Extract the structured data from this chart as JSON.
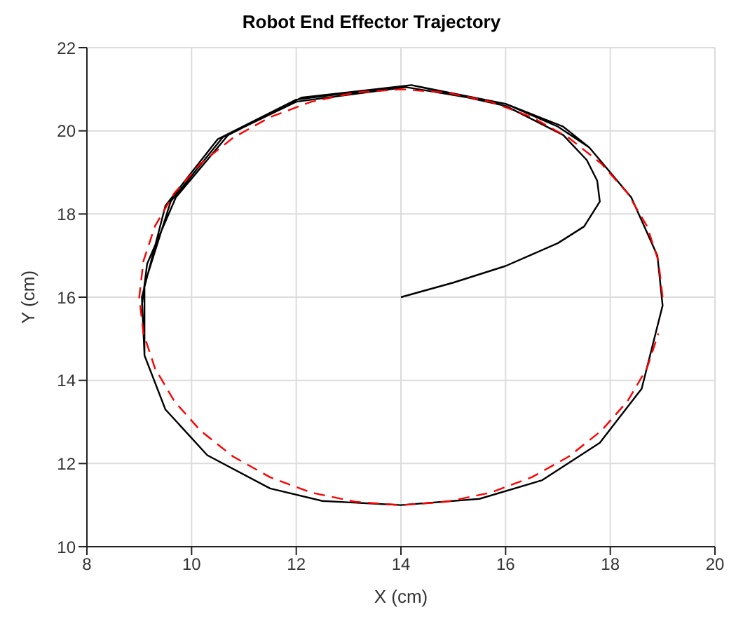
{
  "chart_data": {
    "type": "line",
    "title": "Robot End Effector Trajectory",
    "xlabel": "X (cm)",
    "ylabel": "Y (cm)",
    "xlim": [
      8,
      20
    ],
    "xticks": [
      8,
      10,
      12,
      14,
      16,
      18,
      20
    ],
    "ylim": [
      10,
      22
    ],
    "yticks": [
      10,
      12,
      14,
      16,
      18,
      20,
      22
    ],
    "grid": true,
    "marker": "none",
    "series": [
      {
        "color": "#ff0000",
        "line_style": "dashed",
        "x": [
          19,
          18.92,
          18.7,
          18.33,
          17.83,
          17.21,
          16.5,
          15.71,
          14.87,
          14,
          13.13,
          12.29,
          11.5,
          10.79,
          10.17,
          9.67,
          9.3,
          9.08,
          9,
          9.08,
          9.3,
          9.67,
          10.17,
          10.79,
          11.5,
          12.29,
          13.13,
          14,
          14.87,
          15.71,
          16.5,
          17.21,
          17.83,
          18.33,
          18.7,
          18.92
        ],
        "values": [
          16,
          16.87,
          17.71,
          18.5,
          19.21,
          19.83,
          20.33,
          20.7,
          20.92,
          21,
          20.92,
          20.7,
          20.33,
          19.83,
          19.21,
          18.5,
          17.71,
          16.87,
          16,
          15.13,
          14.29,
          13.5,
          12.79,
          12.17,
          11.67,
          11.3,
          11.08,
          11,
          11.08,
          11.3,
          11.67,
          12.17,
          12.79,
          13.5,
          14.29,
          15.13
        ]
      },
      {
        "color": "#000000",
        "line_style": "solid",
        "x": [
          14,
          15,
          16,
          17,
          17.5,
          17.8,
          17.75,
          17.55,
          17.1,
          16,
          14.2,
          12,
          10.5,
          9.5,
          9.05,
          9.1,
          9.5,
          10.3,
          11.5,
          12.5,
          14,
          15.5,
          16.7,
          17.8,
          18.6,
          19,
          18.9,
          18.4,
          17.6,
          17.1,
          16,
          14.1,
          12,
          10.6,
          9.6,
          9.1,
          9.1,
          9.5,
          10.3,
          11.5,
          12.5,
          14,
          15.5,
          16.7,
          17.8,
          18.6,
          19,
          18.9,
          18.4,
          17.6,
          17,
          16,
          14.2,
          12.1,
          10.7,
          9.7,
          9.15,
          9.05
        ],
        "values": [
          16,
          16.35,
          16.75,
          17.3,
          17.7,
          18.3,
          18.8,
          19.3,
          19.9,
          20.6,
          21.1,
          20.75,
          19.8,
          18.2,
          16,
          14.6,
          13.3,
          12.2,
          11.4,
          11.1,
          11,
          11.15,
          11.6,
          12.5,
          13.8,
          15.8,
          17,
          18.4,
          19.6,
          20.1,
          20.65,
          21.05,
          20.7,
          19.85,
          18.3,
          16.3,
          14.6,
          13.3,
          12.2,
          11.4,
          11.1,
          11,
          11.15,
          11.6,
          12.5,
          13.8,
          15.8,
          17,
          18.4,
          19.6,
          20.1,
          20.65,
          21.1,
          20.8,
          19.9,
          18.4,
          16.8,
          15.8
        ]
      }
    ]
  }
}
